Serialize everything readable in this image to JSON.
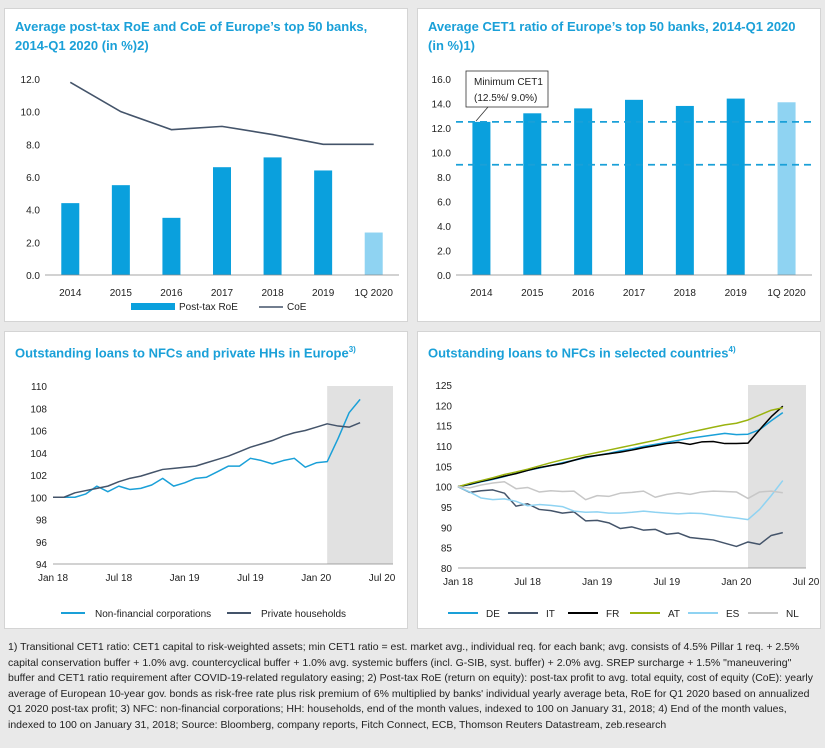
{
  "colors": {
    "title": "#1aa0d8",
    "bar": "#0aa0dd",
    "bar_light": "#8fd3f2",
    "line_dark": "#44546a",
    "dash": "#1aa0d8",
    "shade": "#e1e1e1"
  },
  "chart_data": [
    {
      "type": "bar",
      "title": "Average post-tax RoE and CoE of Europe’s top 50 banks, 2014-Q1 2020 (in %)2)",
      "categories": [
        "2014",
        "2015",
        "2016",
        "2017",
        "2018",
        "2019",
        "1Q 2020"
      ],
      "series": [
        {
          "name": "Post-tax RoE",
          "kind": "bar",
          "values": [
            4.4,
            5.5,
            3.5,
            6.6,
            7.2,
            6.4,
            2.6
          ]
        },
        {
          "name": "CoE",
          "kind": "line",
          "values": [
            11.8,
            10.0,
            8.9,
            9.1,
            8.6,
            8.0,
            8.0
          ]
        }
      ],
      "ylim": [
        0,
        12
      ],
      "yticks": [
        "12.0",
        "10.0",
        "8.0",
        "6.0",
        "4.0",
        "2.0",
        "0.0"
      ],
      "grid": false,
      "legend": "bottom"
    },
    {
      "type": "bar",
      "title": "Average CET1 ratio of Europe’s top 50 banks, 2014-Q1 2020 (in %)1)",
      "categories": [
        "2014",
        "2015",
        "2016",
        "2017",
        "2018",
        "2019",
        "1Q 2020"
      ],
      "values": [
        12.5,
        13.2,
        13.6,
        14.3,
        13.8,
        14.4,
        14.1
      ],
      "reference_lines": [
        12.5,
        9.0
      ],
      "annotation": "Minimum CET1",
      "annotation2": "(12.5%/ 9.0%)",
      "ylim": [
        0,
        16
      ],
      "yticks": [
        "16.0",
        "14.0",
        "12.0",
        "10.0",
        "8.0",
        "6.0",
        "4.0",
        "2.0",
        "0.0"
      ],
      "grid": false
    },
    {
      "type": "line",
      "title": "Outstanding loans to NFCs and private HHs in Europe",
      "title_sup": "3)",
      "ylim": [
        94,
        110
      ],
      "yticks": [
        "110",
        "108",
        "106",
        "104",
        "102",
        "100",
        "98",
        "96",
        "94"
      ],
      "xticks": [
        "Jan 18",
        "Jul 18",
        "Jan 19",
        "Jul 19",
        "Jan 20",
        "Jul 20"
      ],
      "x": [
        "Jan 18",
        "Feb 18",
        "Mar 18",
        "Apr 18",
        "May 18",
        "Jun 18",
        "Jul 18",
        "Aug 18",
        "Sep 18",
        "Oct 18",
        "Nov 18",
        "Dec 18",
        "Jan 19",
        "Feb 19",
        "Mar 19",
        "Apr 19",
        "May 19",
        "Jun 19",
        "Jul 19",
        "Aug 19",
        "Sep 19",
        "Oct 19",
        "Nov 19",
        "Dec 19",
        "Jan 20",
        "Feb 20",
        "Mar 20",
        "Apr 20",
        "May 20"
      ],
      "shaded_from": "Feb 20",
      "series": [
        {
          "name": "Non-financial corporations",
          "values": [
            100,
            100,
            100,
            100.3,
            101,
            100.5,
            101,
            100.7,
            100.8,
            101.1,
            101.7,
            101.0,
            101.3,
            101.7,
            101.8,
            102.3,
            102.8,
            102.8,
            103.5,
            103.3,
            103.0,
            103.3,
            103.5,
            102.7,
            103.1,
            103.2,
            105.3,
            107.6,
            108.8
          ]
        },
        {
          "name": "Private households",
          "values": [
            100,
            100,
            100.4,
            100.6,
            100.8,
            101.0,
            101.4,
            101.7,
            101.9,
            102.2,
            102.5,
            102.6,
            102.7,
            102.8,
            103.1,
            103.4,
            103.7,
            104.1,
            104.5,
            104.8,
            105.1,
            105.5,
            105.8,
            106.0,
            106.3,
            106.6,
            106.4,
            106.3,
            106.7
          ]
        }
      ],
      "grid": false,
      "legend": "bottom"
    },
    {
      "type": "line",
      "title": "Outstanding loans to NFCs in selected countries",
      "title_sup": "4)",
      "ylim": [
        80,
        125
      ],
      "yticks": [
        "125",
        "120",
        "115",
        "110",
        "105",
        "100",
        "95",
        "90",
        "85",
        "80"
      ],
      "xticks": [
        "Jan 18",
        "Jul 18",
        "Jan 19",
        "Jul 19",
        "Jan 20",
        "Jul 20"
      ],
      "x": [
        "Jan 18",
        "Feb 18",
        "Mar 18",
        "Apr 18",
        "May 18",
        "Jun 18",
        "Jul 18",
        "Aug 18",
        "Sep 18",
        "Oct 18",
        "Nov 18",
        "Dec 18",
        "Jan 19",
        "Feb 19",
        "Mar 19",
        "Apr 19",
        "May 19",
        "Jun 19",
        "Jul 19",
        "Aug 19",
        "Sep 19",
        "Oct 19",
        "Nov 19",
        "Dec 19",
        "Jan 20",
        "Feb 20",
        "Mar 20",
        "Apr 20",
        "May 20"
      ],
      "shaded_from": "Feb 20",
      "series": [
        {
          "name": "DE",
          "color": "#1aa0d8",
          "values": [
            100,
            100.5,
            101.2,
            101.8,
            102.5,
            103.3,
            104,
            104.6,
            105.2,
            105.9,
            106.5,
            107.1,
            107.7,
            108.2,
            108.8,
            109.3,
            109.9,
            110.4,
            110.9,
            111.4,
            111.9,
            112.3,
            112.7,
            113.1,
            112.8,
            112.9,
            114,
            116.2,
            118.2
          ]
        },
        {
          "name": "IT",
          "color": "#44546a",
          "values": [
            100,
            98.6,
            99,
            99.2,
            98.4,
            95.2,
            95.8,
            94.4,
            94.1,
            93.5,
            93.8,
            91.6,
            91.7,
            91.1,
            89.7,
            90.1,
            89.3,
            89.5,
            88.3,
            88.6,
            87.5,
            87.2,
            86.9,
            86.1,
            85.3,
            86.4,
            85.8,
            88,
            88.7
          ]
        },
        {
          "name": "FR",
          "color": "#000000",
          "values": [
            100,
            100.6,
            101.3,
            101.9,
            102.6,
            103.2,
            104,
            104.7,
            105.2,
            105.7,
            106.5,
            107.3,
            107.7,
            108.1,
            108.5,
            109,
            109.6,
            110.1,
            110.6,
            110.9,
            110.4,
            111,
            111.1,
            110.6,
            110.6,
            110.7,
            114,
            117.2,
            119.8
          ]
        },
        {
          "name": "AT",
          "color": "#9ab30f",
          "values": [
            100,
            100.8,
            101.5,
            102.2,
            103,
            103.6,
            104.3,
            105.1,
            105.9,
            106.6,
            107.2,
            107.8,
            108.4,
            109,
            109.6,
            110.2,
            110.8,
            111.4,
            112.1,
            112.7,
            113.4,
            114,
            114.6,
            115.2,
            115.6,
            116.4,
            117.6,
            118.8,
            119.4
          ]
        },
        {
          "name": "ES",
          "color": "#8fd3f2",
          "values": [
            100,
            98.7,
            97.2,
            96.8,
            97,
            96.4,
            95.3,
            95.6,
            95.4,
            95.1,
            94,
            93.7,
            93.8,
            93.5,
            93.5,
            93.7,
            94,
            93.7,
            93.5,
            93.3,
            93.5,
            93.4,
            93,
            92.6,
            92.3,
            91.9,
            94.4,
            97.8,
            101.5
          ]
        },
        {
          "name": "NL",
          "color": "#c7c7c7",
          "values": [
            100,
            99.7,
            100.4,
            100.9,
            101.2,
            99.5,
            99.8,
            98.7,
            99,
            98.8,
            98.9,
            96.8,
            97.8,
            97.6,
            98.4,
            98.6,
            98.9,
            97.4,
            98.1,
            98.5,
            98.1,
            98.7,
            98.9,
            98.8,
            98.7,
            97.1,
            98.7,
            98.9,
            98.5
          ]
        }
      ],
      "grid": false,
      "legend": "bottom"
    }
  ],
  "panels": [
    {
      "title": "Average post-tax RoE and CoE of Europe’s top 50 banks, 2014-Q1 2020 (in %)2)"
    },
    {
      "title": "Average CET1 ratio of Europe’s top 50 banks, 2014-Q1 2020 (in %)1)"
    },
    {
      "title": "Outstanding loans to NFCs and private HHs in Europe",
      "sup": "3)"
    },
    {
      "title": "Outstanding loans to NFCs in selected countries",
      "sup": "4)"
    }
  ],
  "footnote": "1) Transitional CET1 ratio: CET1 capital to risk-weighted assets; min CET1 ratio = est. market avg., individual req. for each bank; avg. consists of 4.5% Pillar 1 req. + 2.5% capital conservation buffer + 1.0% avg. countercyclical buffer + 1.0% avg. systemic buffers (incl. G-SIB, syst. buffer) + 2.0% avg. SREP surcharge + 1.5% \"maneuvering\" buffer and CET1 ratio requirement after COVID-19-related regulatory easing; 2) Post-tax RoE (return on equity): post-tax profit to avg. total equity, cost of equity (CoE): yearly average of European 10-year gov. bonds as risk-free rate plus risk premium of 6% multiplied by banks' individual yearly average beta, RoE for Q1 2020 based on annualized Q1 2020 post-tax profit; 3) NFC: non-financial corporations; HH: households, end of the month values, indexed to 100 on January 31, 2018; 4) End of the month values, indexed to 100 on January 31, 2018; Source: Bloomberg, company reports, Fitch Connect, ECB, Thomson Reuters Datastream, zeb.research"
}
